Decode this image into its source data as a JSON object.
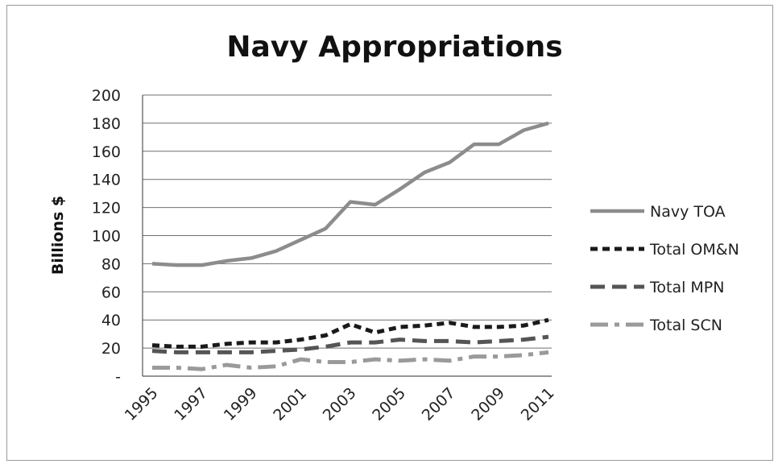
{
  "chart_data": {
    "type": "line",
    "title": "Navy Appropriations",
    "xlabel": "",
    "ylabel": "Billions $",
    "x": [
      1995,
      1996,
      1997,
      1998,
      1999,
      2000,
      2001,
      2002,
      2003,
      2004,
      2005,
      2006,
      2007,
      2008,
      2009,
      2010,
      2011
    ],
    "x_tick_labels": [
      "1995",
      "1997",
      "1999",
      "2001",
      "2003",
      "2005",
      "2007",
      "2009",
      "2011"
    ],
    "y_tick_labels": [
      "-",
      "20",
      "40",
      "60",
      "80",
      "100",
      "120",
      "140",
      "160",
      "180",
      "200"
    ],
    "ylim": [
      0,
      200
    ],
    "grid": true,
    "legend_position": "right",
    "series": [
      {
        "name": "Navy TOA",
        "color": "#8c8c8c",
        "dash": "solid",
        "values": [
          80,
          79,
          79,
          82,
          84,
          89,
          97,
          105,
          124,
          122,
          133,
          145,
          152,
          165,
          165,
          175,
          180
        ]
      },
      {
        "name": "Total OM&N",
        "color": "#1a1a1a",
        "dash": "short",
        "values": [
          22,
          21,
          21,
          23,
          24,
          24,
          26,
          29,
          37,
          31,
          35,
          36,
          38,
          35,
          35,
          36,
          40
        ]
      },
      {
        "name": "Total MPN",
        "color": "#555555",
        "dash": "long",
        "values": [
          18,
          17,
          17,
          17,
          17,
          18,
          19,
          21,
          24,
          24,
          26,
          25,
          25,
          24,
          25,
          26,
          28
        ]
      },
      {
        "name": "Total SCN",
        "color": "#9a9a9a",
        "dash": "longshort",
        "values": [
          6,
          6,
          5,
          8,
          6,
          7,
          12,
          10,
          10,
          12,
          11,
          12,
          11,
          14,
          14,
          15,
          17
        ]
      }
    ]
  }
}
